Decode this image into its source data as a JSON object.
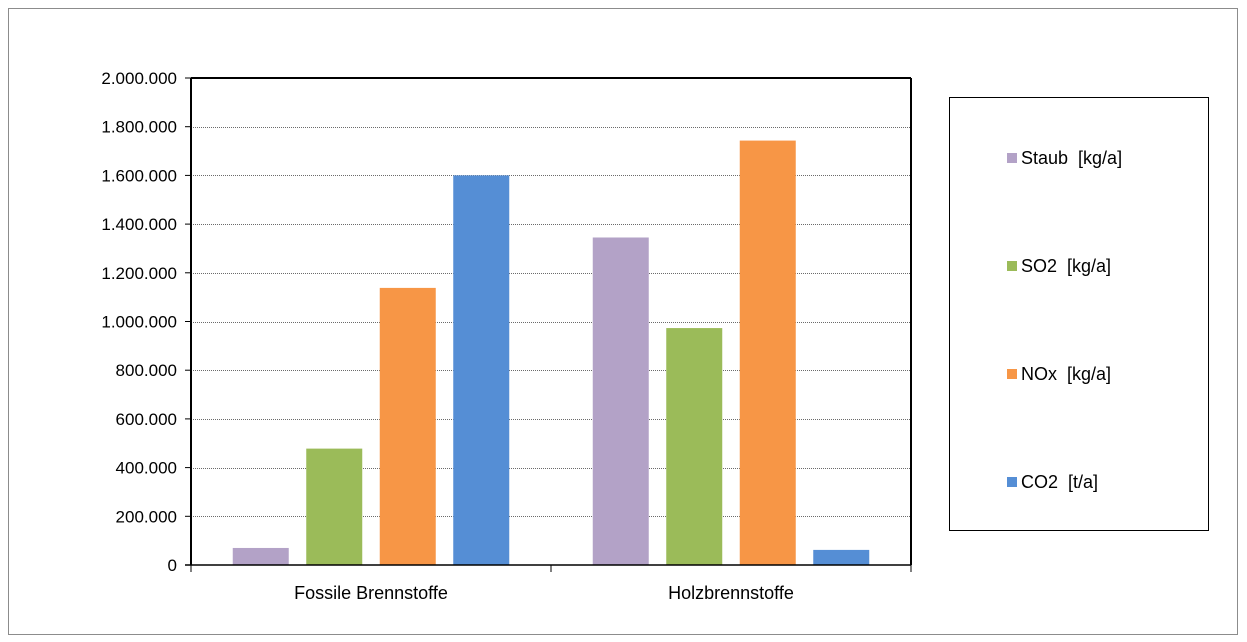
{
  "chart_data": {
    "type": "bar",
    "categories": [
      "Fossile Brennstoffe",
      "Holzbrennstoffe"
    ],
    "series": [
      {
        "name": "Staub  [kg/a]",
        "color": "#b3a2c7",
        "values": [
          70000,
          1345000
        ]
      },
      {
        "name": "SO2  [kg/a]",
        "color": "#9bbb59",
        "values": [
          478000,
          973000
        ]
      },
      {
        "name": "NOx  [kg/a]",
        "color": "#f79646",
        "values": [
          1138000,
          1743000
        ]
      },
      {
        "name": "CO2  [t/a]",
        "color": "#558ed5",
        "values": [
          1600000,
          62000
        ]
      }
    ],
    "ylim": [
      0,
      2000000
    ],
    "yticks": [
      0,
      200000,
      400000,
      600000,
      800000,
      1000000,
      1200000,
      1400000,
      1600000,
      1800000,
      2000000
    ],
    "ytick_labels": [
      "0",
      "200.000",
      "400.000",
      "600.000",
      "800.000",
      "1.000.000",
      "1.200.000",
      "1.400.000",
      "1.600.000",
      "1.800.000",
      "2.000.000"
    ],
    "grid": true,
    "legend_position": "right",
    "title": "",
    "xlabel": "",
    "ylabel": ""
  }
}
